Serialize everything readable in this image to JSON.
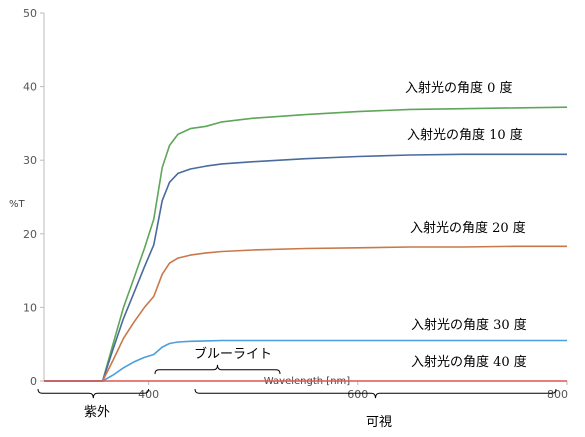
{
  "chart_data": {
    "type": "line",
    "title": "",
    "xlabel": "Wavelength [nm]",
    "ylabel": "%T",
    "xlim": [
      300,
      800
    ],
    "ylim": [
      0,
      50
    ],
    "x_ticks": [
      "400",
      "600",
      "800"
    ],
    "y_ticks": [
      "0",
      "10",
      "20",
      "30",
      "40",
      "50"
    ],
    "grid": false,
    "series": [
      {
        "name": "入射光の角度  0 度",
        "color": "#5fa55a",
        "x": [
          300,
          356,
          366,
          376,
          386,
          396,
          405,
          413,
          420,
          428,
          440,
          455,
          470,
          500,
          550,
          600,
          650,
          700,
          750,
          800
        ],
        "y": [
          0,
          0,
          5,
          10,
          14,
          18,
          22,
          29,
          32,
          33.5,
          34.3,
          34.6,
          35.2,
          35.7,
          36.2,
          36.6,
          36.9,
          37.0,
          37.1,
          37.2
        ]
      },
      {
        "name": "入射光の角度 10 度",
        "color": "#4a6b9c",
        "x": [
          300,
          356,
          366,
          376,
          386,
          396,
          405,
          413,
          420,
          428,
          440,
          455,
          470,
          500,
          550,
          600,
          650,
          700,
          750,
          800
        ],
        "y": [
          0,
          0,
          4.3,
          8.5,
          12,
          15.5,
          18.5,
          24.5,
          27,
          28.2,
          28.8,
          29.2,
          29.5,
          29.8,
          30.2,
          30.5,
          30.7,
          30.8,
          30.8,
          30.8
        ]
      },
      {
        "name": "入射光の角度 20 度",
        "color": "#c8784a",
        "x": [
          300,
          356,
          366,
          376,
          386,
          396,
          405,
          413,
          420,
          428,
          440,
          455,
          470,
          500,
          550,
          600,
          650,
          700,
          750,
          800
        ],
        "y": [
          0,
          0,
          2.8,
          5.8,
          8,
          10,
          11.5,
          14.5,
          16,
          16.7,
          17.1,
          17.4,
          17.6,
          17.8,
          18.0,
          18.1,
          18.2,
          18.2,
          18.3,
          18.3
        ]
      },
      {
        "name": "入射光の角度 30 度",
        "color": "#4aa0dc",
        "x": [
          300,
          356,
          366,
          376,
          386,
          396,
          405,
          413,
          420,
          428,
          440,
          455,
          470,
          500,
          550,
          600,
          650,
          700,
          750,
          800
        ],
        "y": [
          0,
          0,
          0.8,
          1.8,
          2.6,
          3.2,
          3.6,
          4.6,
          5.1,
          5.3,
          5.4,
          5.45,
          5.5,
          5.5,
          5.5,
          5.5,
          5.5,
          5.5,
          5.5,
          5.5
        ]
      },
      {
        "name": "入射光の角度 40 度",
        "color": "#e05555",
        "x": [
          300,
          800
        ],
        "y": [
          0,
          0
        ]
      }
    ],
    "regions": [
      {
        "label": "紫外",
        "x": [
          300,
          400
        ],
        "brace": "below-axis"
      },
      {
        "label": "ブルーライト",
        "x": [
          380,
          500
        ],
        "brace": "above-axis"
      },
      {
        "label": "可視",
        "x": [
          400,
          800
        ],
        "brace": "below-axis"
      }
    ]
  }
}
